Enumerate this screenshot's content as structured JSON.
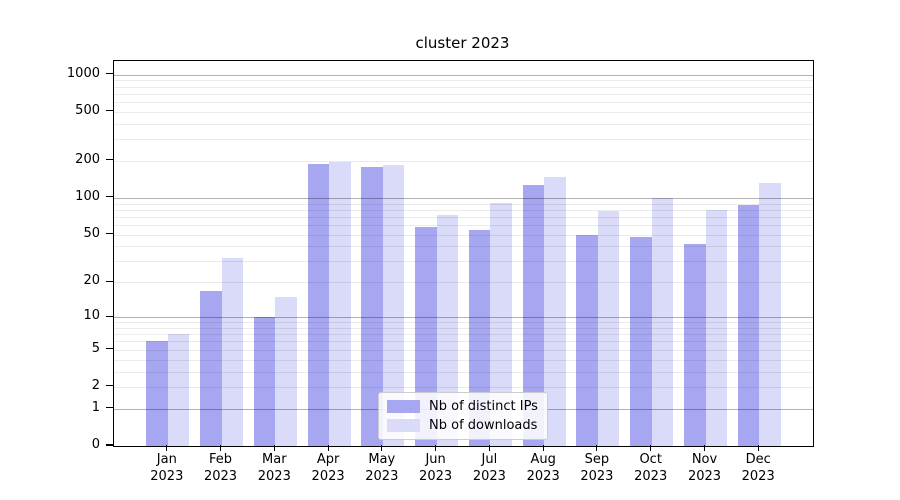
{
  "title": "cluster 2023",
  "legend": {
    "items": [
      {
        "label": "Nb of distinct IPs",
        "swatch": "dark"
      },
      {
        "label": "Nb of downloads",
        "swatch": "light"
      }
    ]
  },
  "axes": {
    "y_tick_labels": [
      "0",
      "1",
      "2",
      "5",
      "10",
      "20",
      "50",
      "100",
      "200",
      "500",
      "1000"
    ],
    "y_tick_values": [
      0,
      1,
      2,
      5,
      10,
      20,
      50,
      100,
      200,
      500,
      1000
    ],
    "x_months": [
      "Jan",
      "Feb",
      "Mar",
      "Apr",
      "May",
      "Jun",
      "Jul",
      "Aug",
      "Sep",
      "Oct",
      "Nov",
      "Dec"
    ],
    "x_year": "2023"
  },
  "colors": {
    "bar_dark": "#a7a7f1",
    "bar_light": "#dadaf9",
    "grid_major": "rgba(0,0,0,0.30)",
    "grid_minor": "rgba(0,0,0,0.08)",
    "axis": "#000000",
    "background": "#ffffff",
    "legend_border": "#cccccc"
  },
  "chart_data": {
    "type": "bar",
    "title": "cluster 2023",
    "scale": "log1p (position proportional to log10(1+value), 0 at baseline)",
    "categories": [
      "Jan 2023",
      "Feb 2023",
      "Mar 2023",
      "Apr 2023",
      "May 2023",
      "Jun 2023",
      "Jul 2023",
      "Aug 2023",
      "Sep 2023",
      "Oct 2023",
      "Nov 2023",
      "Dec 2023"
    ],
    "series": [
      {
        "name": "Nb of distinct IPs",
        "color": "#a7a7f1",
        "values": [
          6,
          17,
          10,
          190,
          178,
          58,
          55,
          128,
          50,
          48,
          42,
          87
        ]
      },
      {
        "name": "Nb of downloads",
        "color": "#dadaf9",
        "values": [
          7,
          32,
          15,
          196,
          185,
          73,
          91,
          149,
          78,
          100,
          80,
          133
        ]
      }
    ],
    "y_ticks": [
      0,
      1,
      2,
      5,
      10,
      20,
      50,
      100,
      200,
      500,
      1000
    ],
    "ylim": [
      0,
      1280
    ],
    "grid": "horizontal, major lines at 1/10/100/1000, faint minor lines at 2-9 per decade, drawn above bars",
    "legend_position": "lower center"
  }
}
